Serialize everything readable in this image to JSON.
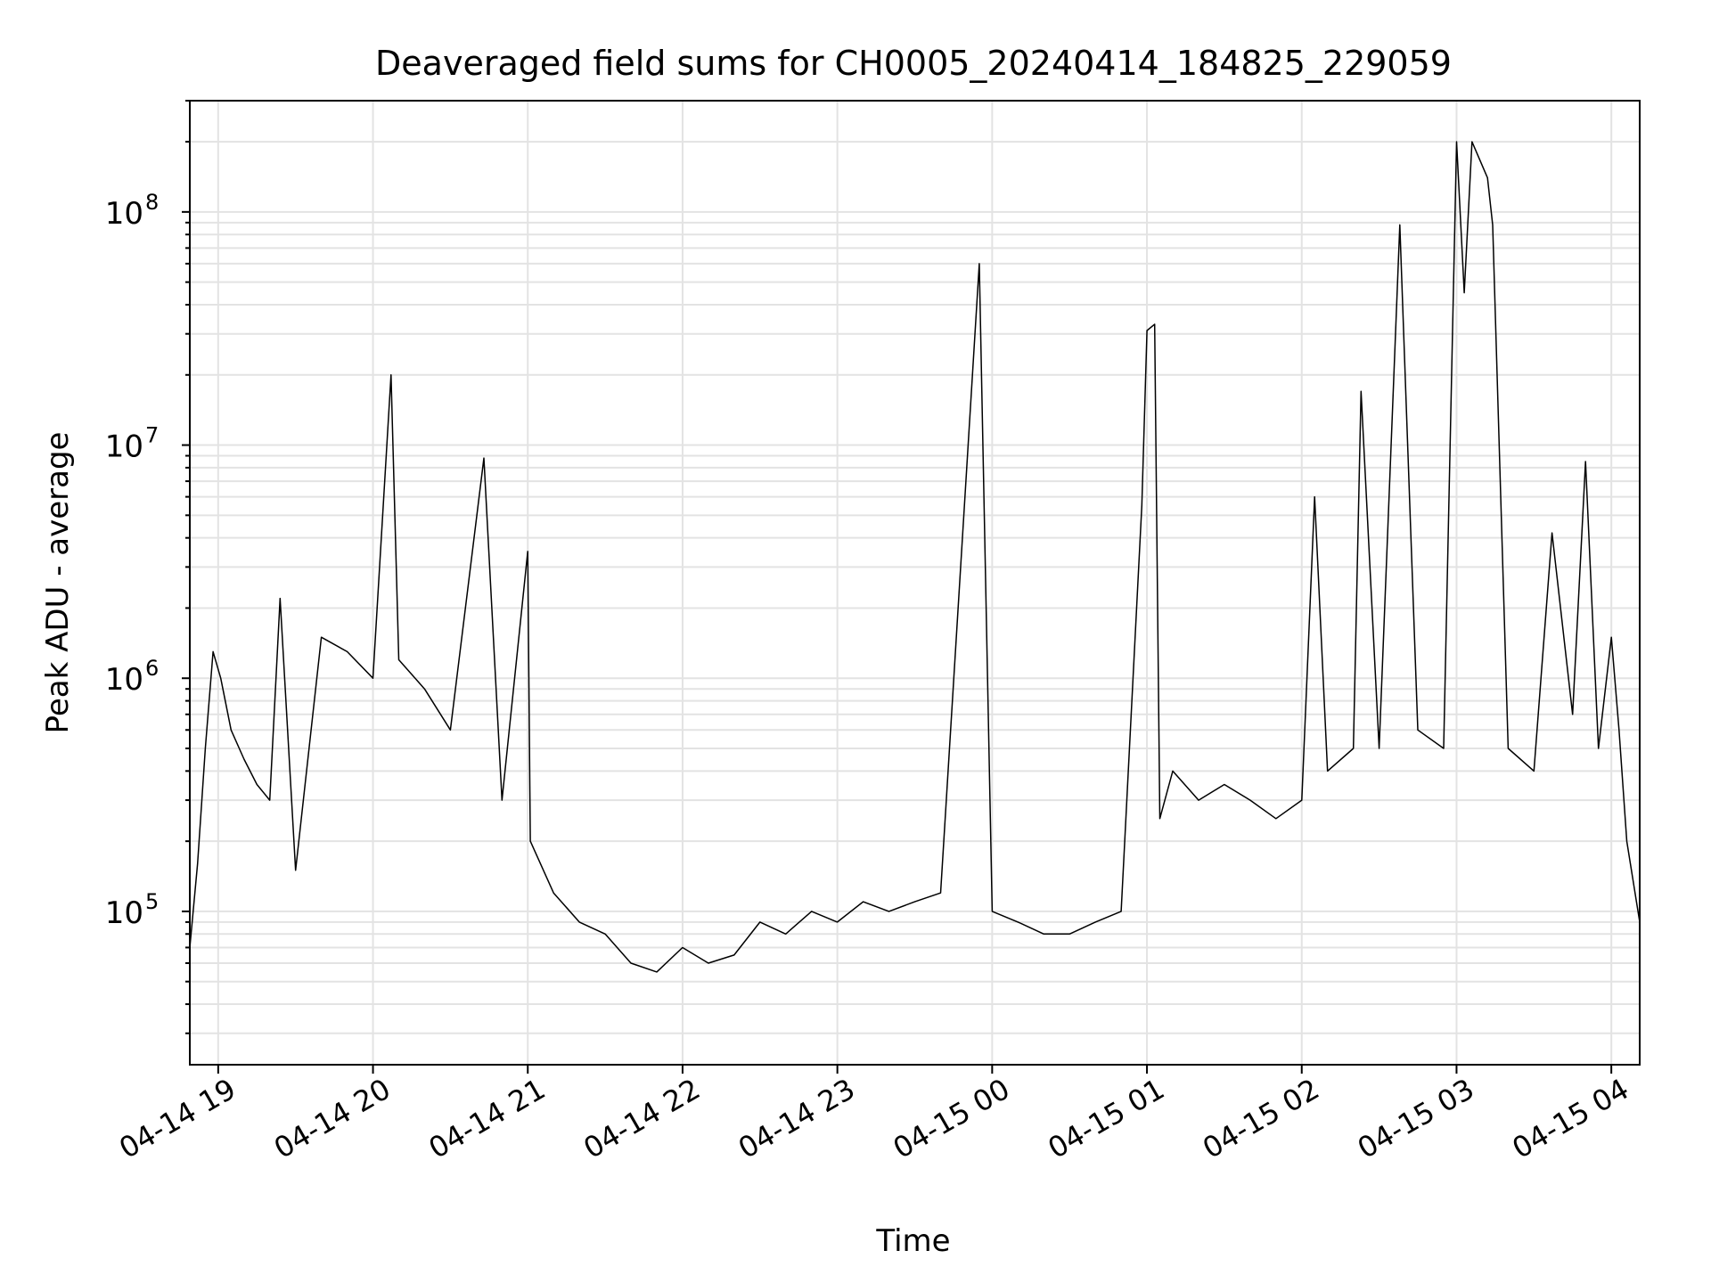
{
  "chart_data": {
    "type": "line",
    "title": "Deaveraged field sums for CH0005_20240414_184825_229059",
    "xlabel": "Time",
    "ylabel": "Peak ADU - average",
    "yscale": "log",
    "grid": true,
    "legend": "none",
    "line_color": "#000000",
    "xlim": [
      "2024-04-14 18:49",
      "2024-04-15 04:11"
    ],
    "ylim": [
      22000,
      300000000
    ],
    "x_ticks": [
      "2024-04-14 19:00",
      "2024-04-14 20:00",
      "2024-04-14 21:00",
      "2024-04-14 22:00",
      "2024-04-14 23:00",
      "2024-04-15 00:00",
      "2024-04-15 01:00",
      "2024-04-15 02:00",
      "2024-04-15 03:00",
      "2024-04-15 04:00"
    ],
    "x_tick_labels": [
      "04-14 19",
      "04-14 20",
      "04-14 21",
      "04-14 22",
      "04-14 23",
      "04-15 00",
      "04-15 01",
      "04-15 02",
      "04-15 03",
      "04-15 04"
    ],
    "y_ticks": [
      100000,
      1000000,
      10000000,
      100000000
    ],
    "y_tick_labels": [
      {
        "base": "10",
        "exp": "5"
      },
      {
        "base": "10",
        "exp": "6"
      },
      {
        "base": "10",
        "exp": "7"
      },
      {
        "base": "10",
        "exp": "8"
      }
    ],
    "series": [
      {
        "x": [
          "2024-04-14 18:49",
          "2024-04-14 18:52",
          "2024-04-14 18:55",
          "2024-04-14 18:58",
          "2024-04-14 19:01",
          "2024-04-14 19:05",
          "2024-04-14 19:10",
          "2024-04-14 19:15",
          "2024-04-14 19:20",
          "2024-04-14 19:24",
          "2024-04-14 19:30",
          "2024-04-14 19:40",
          "2024-04-14 19:50",
          "2024-04-14 20:00",
          "2024-04-14 20:07",
          "2024-04-14 20:10",
          "2024-04-14 20:20",
          "2024-04-14 20:30",
          "2024-04-14 20:43",
          "2024-04-14 20:50",
          "2024-04-14 21:00",
          "2024-04-14 21:01",
          "2024-04-14 21:10",
          "2024-04-14 21:20",
          "2024-04-14 21:30",
          "2024-04-14 21:40",
          "2024-04-14 21:50",
          "2024-04-14 22:00",
          "2024-04-14 22:10",
          "2024-04-14 22:20",
          "2024-04-14 22:30",
          "2024-04-14 22:40",
          "2024-04-14 22:50",
          "2024-04-14 23:00",
          "2024-04-14 23:10",
          "2024-04-14 23:20",
          "2024-04-14 23:30",
          "2024-04-14 23:40",
          "2024-04-14 23:55",
          "2024-04-15 00:00",
          "2024-04-15 00:10",
          "2024-04-15 00:20",
          "2024-04-15 00:30",
          "2024-04-15 00:40",
          "2024-04-15 00:50",
          "2024-04-15 00:58",
          "2024-04-15 01:00",
          "2024-04-15 01:03",
          "2024-04-15 01:05",
          "2024-04-15 01:10",
          "2024-04-15 01:20",
          "2024-04-15 01:30",
          "2024-04-15 01:40",
          "2024-04-15 01:50",
          "2024-04-15 02:00",
          "2024-04-15 02:05",
          "2024-04-15 02:10",
          "2024-04-15 02:20",
          "2024-04-15 02:23",
          "2024-04-15 02:30",
          "2024-04-15 02:38",
          "2024-04-15 02:45",
          "2024-04-15 02:55",
          "2024-04-15 03:00",
          "2024-04-15 03:03",
          "2024-04-15 03:06",
          "2024-04-15 03:12",
          "2024-04-15 03:14",
          "2024-04-15 03:20",
          "2024-04-15 03:30",
          "2024-04-15 03:37",
          "2024-04-15 03:45",
          "2024-04-15 03:50",
          "2024-04-15 03:55",
          "2024-04-15 04:00",
          "2024-04-15 04:03",
          "2024-04-15 04:06",
          "2024-04-15 04:11"
        ],
        "y": [
          70000,
          160000,
          500000,
          1300000,
          1000000,
          600000,
          450000,
          350000,
          300000,
          2200000,
          150000,
          1500000,
          1300000,
          1000000,
          20000000,
          1200000,
          900000,
          600000,
          8800000,
          300000,
          3500000,
          200000,
          120000,
          90000,
          80000,
          60000,
          55000,
          70000,
          60000,
          65000,
          90000,
          80000,
          100000,
          90000,
          110000,
          100000,
          110000,
          120000,
          60000000,
          100000,
          90000,
          80000,
          80000,
          90000,
          100000,
          5500000,
          31000000,
          33000000,
          250000,
          400000,
          300000,
          350000,
          300000,
          250000,
          300000,
          6000000,
          400000,
          500000,
          17000000,
          500000,
          88000000,
          600000,
          500000,
          200000000,
          45000000,
          200000000,
          140000000,
          88000000,
          500000,
          400000,
          4200000,
          700000,
          8500000,
          500000,
          1500000,
          600000,
          200000,
          90000
        ]
      }
    ]
  }
}
